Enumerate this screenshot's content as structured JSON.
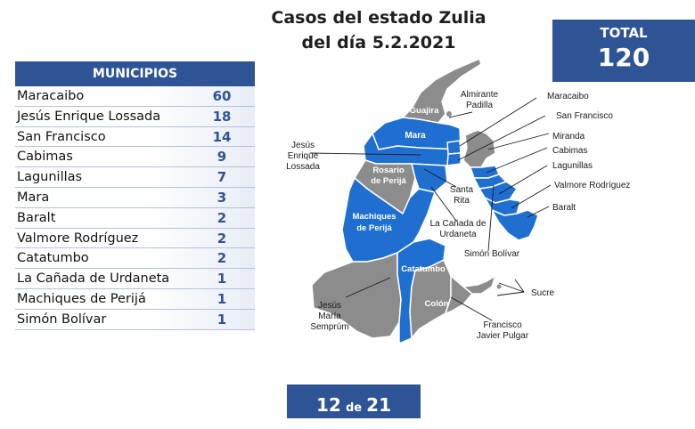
{
  "title": {
    "line1": "Casos del estado Zulia",
    "line2": "del día 5.2.2021"
  },
  "total": {
    "label": "TOTAL",
    "value": "120"
  },
  "table": {
    "header": "MUNICIPIOS",
    "rows": [
      {
        "name": "Maracaibo",
        "count": "60"
      },
      {
        "name": "Jesús Enrique Lossada",
        "count": "18"
      },
      {
        "name": "San Francisco",
        "count": "14"
      },
      {
        "name": "Cabimas",
        "count": "9"
      },
      {
        "name": "Lagunillas",
        "count": "7"
      },
      {
        "name": "Mara",
        "count": "3"
      },
      {
        "name": "Baralt",
        "count": "2"
      },
      {
        "name": "Valmore Rodríguez",
        "count": "2"
      },
      {
        "name": "Catatumbo",
        "count": "2"
      },
      {
        "name": "La Cañada de Urdaneta",
        "count": "1"
      },
      {
        "name": "Machiques de Perijá",
        "count": "1"
      },
      {
        "name": "Simón Bolívar",
        "count": "1"
      }
    ]
  },
  "map": {
    "colors": {
      "affected": "#1f6fd1",
      "unaffected": "#8c8c8c",
      "border": "#ffffff"
    },
    "inner_labels": {
      "guajira": "Guajira",
      "mara": "Mara",
      "rosario1": "Rosario",
      "rosario2": "de Perijá",
      "machiques1": "Machiques",
      "machiques2": "de Perijá",
      "catatumbo": "Catatumbo",
      "colon": "Colón"
    },
    "callouts": {
      "almirante1": "Almirante",
      "almirante2": "Padilla",
      "maracaibo": "Maracaibo",
      "sanfrancisco": "San Francisco",
      "miranda": "Miranda",
      "cabimas": "Cabimas",
      "lagunillas": "Lagunillas",
      "valmore": "Valmore Rodríguez",
      "baralt": "Baralt",
      "jesus_e1": "Jesús",
      "jesus_e2": "Enrique",
      "jesus_e3": "Lossada",
      "santarita1": "Santa",
      "santarita2": "Rita",
      "canada1": "La Cañada de",
      "canada2": "Urdaneta",
      "simon": "Simón Bolívar",
      "sucre": "Sucre",
      "jesus_m1": "Jesús",
      "jesus_m2": "María",
      "jesus_m3": "Semprúm",
      "francisco1": "Francisco",
      "francisco2": "Javier Pulgar"
    }
  },
  "page": {
    "current": "12",
    "of": "de",
    "total": "21"
  }
}
